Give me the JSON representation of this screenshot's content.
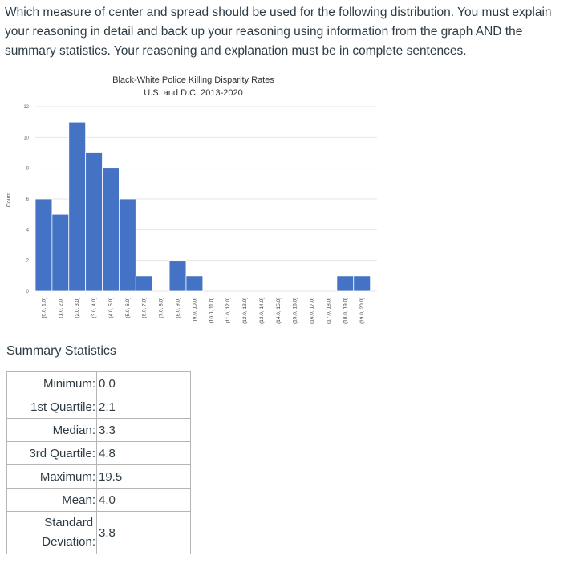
{
  "question": {
    "text": "Which measure of center and spread should be used for the following distribution.  You must explain your reasoning in detail and back up your reasoning using information from the graph AND the summary statistics.  Your reasoning and explanation must be in complete sentences."
  },
  "chart_data": {
    "type": "bar",
    "title": "Black-White Police Killing Disparity Rates",
    "subtitle": "U.S. and D.C. 2013-2020",
    "xlabel": "",
    "ylabel": "Count",
    "ylim": [
      0,
      12
    ],
    "yticks": [
      0,
      2,
      4,
      6,
      8,
      10,
      12
    ],
    "grid": true,
    "bar_color": "#4472c4",
    "categories": [
      "[0.0, 1.0]",
      "(1.0, 2.0]",
      "(2.0, 3.0]",
      "(3.0, 4.0]",
      "(4.0, 5.0]",
      "(5.0, 6.0]",
      "(6.0, 7.0]",
      "(7.0, 8.0]",
      "(8.0, 9.0]",
      "(9.0, 10.0]",
      "(10.0, 11.0]",
      "(11.0, 12.0]",
      "(12.0, 13.0]",
      "(13.0, 14.0]",
      "(14.0, 15.0]",
      "(15.0, 16.0]",
      "(16.0, 17.0]",
      "(17.0, 18.0]",
      "(18.0, 19.0]",
      "(19.0, 20.0]"
    ],
    "values": [
      6,
      5,
      11,
      9,
      8,
      6,
      1,
      0,
      2,
      1,
      0,
      0,
      0,
      0,
      0,
      0,
      0,
      0,
      1,
      1
    ]
  },
  "summary": {
    "title": "Summary Statistics",
    "min_label": "Minimum:",
    "min_value": "0.0",
    "q1_label": "1st Quartile:",
    "q1_value": "2.1",
    "median_label": "Median:",
    "median_value": "3.3",
    "q3_label": "3rd Quartile:",
    "q3_value": "4.8",
    "max_label": "Maximum:",
    "max_value": "19.5",
    "mean_label": "Mean:",
    "mean_value": "4.0",
    "sd_label_line1": "Standard",
    "sd_label_line2": "Deviation:",
    "sd_value": "3.8"
  }
}
